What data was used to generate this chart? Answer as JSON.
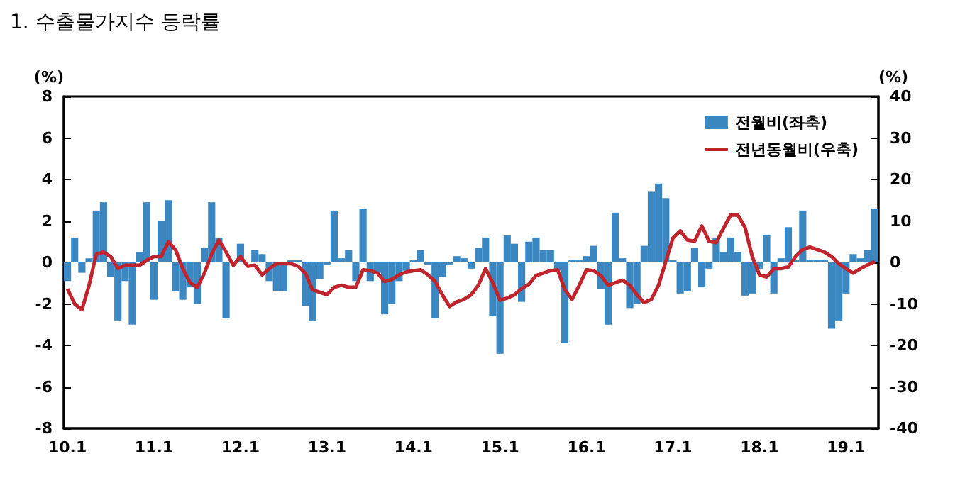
{
  "chart_data": {
    "type": "bar",
    "title": "1. 수출물가지수 등락률",
    "ylabel": "(%)",
    "y2label": "(%)",
    "categories": [
      "10.1",
      null,
      null,
      null,
      null,
      null,
      null,
      null,
      null,
      null,
      null,
      null,
      "11.1",
      null,
      null,
      null,
      null,
      null,
      null,
      null,
      null,
      null,
      null,
      null,
      "12.1",
      null,
      null,
      null,
      null,
      null,
      null,
      null,
      null,
      null,
      null,
      null,
      "13.1",
      null,
      null,
      null,
      null,
      null,
      null,
      null,
      null,
      null,
      null,
      null,
      "14.1",
      null,
      null,
      null,
      null,
      null,
      null,
      null,
      null,
      null,
      null,
      null,
      "15.1",
      null,
      null,
      null,
      null,
      null,
      null,
      null,
      null,
      null,
      null,
      null,
      "16.1",
      null,
      null,
      null,
      null,
      null,
      null,
      null,
      null,
      null,
      null,
      null,
      "17.1",
      null,
      null,
      null,
      null,
      null,
      null,
      null,
      null,
      null,
      null,
      null,
      "18.1",
      null,
      null,
      null,
      null,
      null,
      null,
      null,
      null,
      null,
      null,
      null,
      "19.1",
      null,
      null,
      null,
      null
    ],
    "series": [
      {
        "name": "전월비(좌축)",
        "color": "#3a87c2",
        "values": [
          -0.9,
          1.2,
          -0.5,
          0.2,
          2.5,
          2.9,
          -0.7,
          -2.8,
          -0.9,
          -3.0,
          0.5,
          2.9,
          -1.8,
          2.0,
          3.0,
          -1.4,
          -1.8,
          -1.2,
          -2.0,
          0.7,
          2.9,
          1.2,
          -2.7,
          null,
          0.9,
          null,
          0.6,
          0.4,
          -0.9,
          -1.4,
          -1.4,
          0.1,
          0.1,
          -2.1,
          -2.8,
          -0.8,
          -0.1,
          2.5,
          0.2,
          0.6,
          -0.9,
          2.6,
          -0.9,
          -0.5,
          -2.5,
          -2.0,
          -0.9,
          -0.4,
          0.1,
          0.6,
          -0.1,
          -2.7,
          -0.7,
          -0.1,
          0.3,
          0.2,
          -0.3,
          0.7,
          1.2,
          -2.6,
          -4.4,
          1.3,
          0.9,
          -1.9,
          1.0,
          1.2,
          0.6,
          0.6,
          -0.4,
          -3.9,
          0.1,
          0.1,
          0.3,
          0.8,
          -1.3,
          -3.0,
          2.4,
          0.2,
          -2.2,
          -2.0,
          0.8,
          3.4,
          3.8,
          3.1,
          0.1,
          -1.5,
          -1.4,
          0.7,
          -1.2,
          -0.3,
          1.2,
          0.5,
          1.2,
          0.5,
          -1.6,
          -1.5,
          -0.3,
          1.3,
          -1.5,
          0.2,
          1.7,
          0.1,
          2.5,
          0.1,
          0.1,
          0.1,
          -3.2,
          -2.8,
          -1.5,
          0.4,
          0.2,
          0.6,
          2.6
        ]
      },
      {
        "name": "전년동월비(우축)",
        "type": "line",
        "axis": "y2",
        "color": "#c0242c",
        "values": [
          -6.4,
          -10,
          -11.4,
          -5.5,
          2,
          2.5,
          1.4,
          -1.5,
          -0.7,
          -0.7,
          -0.7,
          0.5,
          1.4,
          1.4,
          5,
          3,
          -1.5,
          -4.9,
          -6,
          -2.6,
          2,
          5.4,
          2.5,
          -0.7,
          1.4,
          -0.9,
          -0.7,
          -3,
          -1.5,
          -0.3,
          -0.3,
          -0.3,
          -0.9,
          -2.6,
          -6.6,
          -7.2,
          -7.8,
          -6,
          -5.5,
          -6,
          -6,
          -1.8,
          -2,
          -2.6,
          -4.6,
          -4.1,
          -3,
          -2.3,
          -2,
          -1.8,
          -3,
          -4.6,
          -7.8,
          -10.6,
          -9.5,
          -8.9,
          -7.8,
          -5.5,
          -1.5,
          -4.9,
          -9.1,
          -8.6,
          -7.8,
          -6.3,
          -5.3,
          -3.2,
          -2.6,
          -2,
          -1.8,
          -6.6,
          -8.9,
          -5.5,
          -1.8,
          -2,
          -3.2,
          -5.5,
          -4.9,
          -4.3,
          -5.5,
          -7.8,
          -9.7,
          -8.9,
          -5.5,
          0.2,
          5.9,
          7.6,
          5.4,
          5.1,
          8.8,
          5.1,
          4.8,
          8.2,
          11.4,
          11.4,
          8.4,
          1.4,
          -3,
          -3.5,
          -1.5,
          -1.5,
          -1.1,
          1.4,
          3.1,
          3.7,
          3.1,
          2.5,
          1.4,
          -0.3,
          -1.5,
          -2.6,
          -1.5,
          -0.6,
          0.2
        ]
      }
    ],
    "ylim": [
      -8,
      8
    ],
    "yticks": [
      -8,
      -6,
      -4,
      -2,
      0,
      2,
      4,
      6,
      8
    ],
    "y2lim": [
      -40,
      40
    ],
    "y2ticks": [
      -40,
      -30,
      -20,
      -10,
      0,
      10,
      20,
      30,
      40
    ],
    "legend": "top right",
    "marker": "none"
  }
}
